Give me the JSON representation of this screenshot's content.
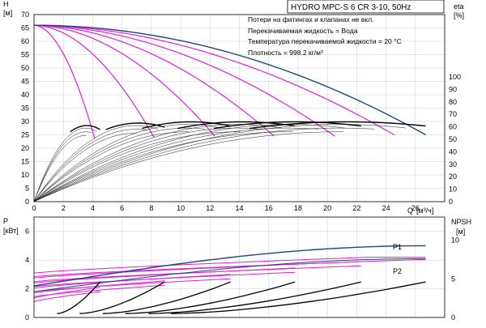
{
  "chart_data": [
    {
      "type": "line",
      "title": "HYDRO MPC-S 6 CR 3-10, 50Hz",
      "notes": [
        "Потери на фитингах и клапанах не вкл.",
        "Перекачиваемая жидкость = Вода",
        "Температура перекачиваемой жидкости = 20 °C",
        "Плотность = 998.2 кг/м³"
      ],
      "y_label_top": "H",
      "y_label_bottom": "[м]",
      "y2_label_top": "eta",
      "y2_label_bottom": "[%]",
      "x_label": "Q",
      "x_unit": "[м³/ч]",
      "x_ticks": [
        0,
        2,
        4,
        6,
        8,
        10,
        12,
        14,
        16,
        18,
        20,
        22,
        24,
        26
      ],
      "y_ticks": [
        0,
        5,
        10,
        15,
        20,
        25,
        30,
        35,
        40,
        45,
        50,
        55,
        60,
        65,
        70
      ],
      "y2_ticks": [
        0,
        10,
        20,
        30,
        40,
        50,
        60,
        70,
        80,
        90,
        100
      ],
      "xlim": [
        0,
        28
      ],
      "ylim": [
        0,
        70
      ],
      "y2lim": [
        0,
        150
      ],
      "grid": true,
      "shutoff_head": 66,
      "qmax_per_pump": [
        4.5,
        8.9,
        13.4,
        17.8,
        22.3,
        26.7
      ],
      "head_at_qmax": [
        23.5,
        24,
        24.5,
        24.5,
        24.5,
        25
      ],
      "eta_peak": [
        59,
        61,
        62,
        62,
        62,
        62
      ],
      "npsh_label_top": "NPSH",
      "npsh_label_bottom": "[м]"
    },
    {
      "type": "line",
      "y_label_top": "P",
      "y_label_bottom": "[кВт]",
      "y_ticks": [
        0,
        2,
        4,
        6
      ],
      "ylim": [
        0,
        7
      ],
      "npsh_ticks": [
        0,
        5,
        10
      ],
      "npsh_lim": [
        0,
        13
      ],
      "series_labels": [
        "P1",
        "P2"
      ],
      "p1_end": 5.0,
      "p2_end": 4.1,
      "npsh_end": 4.6
    }
  ]
}
